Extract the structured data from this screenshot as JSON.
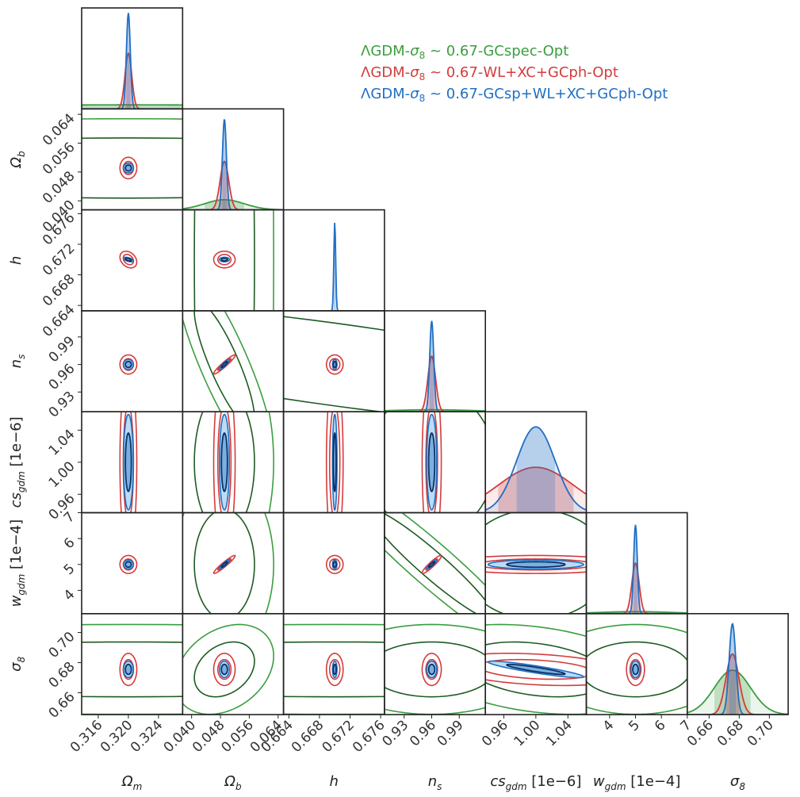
{
  "chart_data": {
    "type": "corner",
    "parameters": [
      {
        "key": "Om",
        "label": "Ω",
        "sub": "m",
        "unit": "",
        "range": [
          0.3138,
          0.3272
        ],
        "ticks": [
          0.316,
          0.32,
          0.324
        ],
        "tick_labels": [
          "0.316",
          "0.320",
          "0.324"
        ],
        "mean": 0.32,
        "sigma": 0.00026
      },
      {
        "key": "Ob",
        "label": "Ω",
        "sub": "b",
        "unit": "",
        "range": [
          0.0375,
          0.0655
        ],
        "ticks": [
          0.04,
          0.048,
          0.056,
          0.064
        ],
        "tick_labels": [
          "0.040",
          "0.048",
          "0.056",
          "0.064"
        ],
        "mean": 0.0491,
        "sigma": 0.00055
      },
      {
        "key": "h",
        "label": "h",
        "sub": "",
        "unit": "",
        "range": [
          0.6633,
          0.6765
        ],
        "ticks": [
          0.664,
          0.668,
          0.672,
          0.676
        ],
        "tick_labels": [
          "0.664",
          "0.668",
          "0.672",
          "0.676"
        ],
        "mean": 0.67,
        "sigma": 0.00012
      },
      {
        "key": "ns",
        "label": "n",
        "sub": "s",
        "unit": "",
        "range": [
          0.9085,
          1.0185
        ],
        "ticks": [
          0.93,
          0.96,
          0.99
        ],
        "tick_labels": [
          "0.93",
          "0.96",
          "0.99"
        ],
        "mean": 0.96,
        "sigma": 0.0022
      },
      {
        "key": "cs",
        "label": "cs",
        "sub": "gdm",
        "unit": " [1e−6]",
        "range": [
          0.937,
          1.063
        ],
        "ticks": [
          0.96,
          1.0,
          1.04
        ],
        "tick_labels": [
          "0.96",
          "1.00",
          "1.04"
        ],
        "mean": 1.0,
        "sigma": 0.024
      },
      {
        "key": "w",
        "label": "w",
        "sub": "gdm",
        "unit": " [1e−4]",
        "range": [
          3.1,
          7.0
        ],
        "ticks": [
          4,
          5,
          6,
          7
        ],
        "tick_labels": [
          "4",
          "5",
          "6",
          "7"
        ],
        "mean": 5.0,
        "sigma": 0.07
      },
      {
        "key": "s8",
        "label": "σ",
        "sub": "8",
        "unit": "",
        "range": [
          0.6455,
          0.7125
        ],
        "ticks": [
          0.66,
          0.68,
          0.7
        ],
        "tick_labels": [
          "0.66",
          "0.68",
          "0.70"
        ],
        "mean": 0.6755,
        "sigma": 0.0022
      }
    ],
    "series": [
      {
        "name": "GCspec",
        "label_prefix": "ΛGDM-",
        "label_sym": "σ",
        "label_sub": "8",
        "label_suffix": " ~ 0.67-GCspec-Opt",
        "color": "#3a9e3f",
        "inner_color": "#1e5b22",
        "fill": false,
        "sigma": {
          "Om": 0.03,
          "Ob": 0.0055,
          "h": 0.03,
          "ns": 0.045,
          "cs": 0.06,
          "w": 1.4,
          "s8": 0.012
        },
        "rho": {
          "Ob-ns": -0.85,
          "Ob-s8": 0.3,
          "h-ns": -0.75,
          "ns-w": -0.95,
          "cs-s8": -0.3
        },
        "diag_peak": [
          0.04,
          0.1,
          0.0,
          0.02,
          0.0,
          0.02,
          0.44
        ]
      },
      {
        "name": "WL+XC+GCph",
        "label_prefix": "ΛGDM-",
        "label_sym": "σ",
        "label_sub": "8",
        "label_suffix": " ~ 0.67-WL+XC+GCph-Opt",
        "color": "#d43c3c",
        "inner_color": "#d43c3c",
        "fill": false,
        "sigma": {
          "Om": 0.00045,
          "Ob": 0.0012,
          "h": 0.00044,
          "ns": 0.0042,
          "cs": 0.047,
          "w": 0.14,
          "s8": 0.0043
        },
        "rho": {
          "Ob-ns": 0.95,
          "Ob-w": 0.95,
          "ns-w": 0.93,
          "h-Om": -0.3,
          "cs-s8": -0.3
        },
        "diag_peak": [
          0.55,
          0.48,
          0.0,
          0.55,
          0.45,
          0.5,
          0.6
        ]
      },
      {
        "name": "GCsp+WL+XC+GCph",
        "label_prefix": "ΛGDM-",
        "label_sym": "σ",
        "label_sub": "8",
        "label_suffix": " ~ 0.67-GCsp+WL+XC+GCph-Opt",
        "color": "#1f6fc5",
        "inner_color": "#0b2f63",
        "fill": true,
        "sigma": {
          "Om": 0.00026,
          "Ob": 0.00055,
          "h": 0.00012,
          "ns": 0.0022,
          "cs": 0.024,
          "w": 0.07,
          "s8": 0.0022
        },
        "rho": {
          "Om-h": -0.55,
          "Ob-ns": 0.9,
          "Ob-w": 0.9,
          "ns-w": 0.9,
          "cs-s8": -0.9,
          "cs-w": 0.0
        },
        "diag_peak": [
          0.95,
          0.9,
          0.88,
          0.9,
          0.85,
          0.88,
          0.9
        ]
      }
    ]
  }
}
